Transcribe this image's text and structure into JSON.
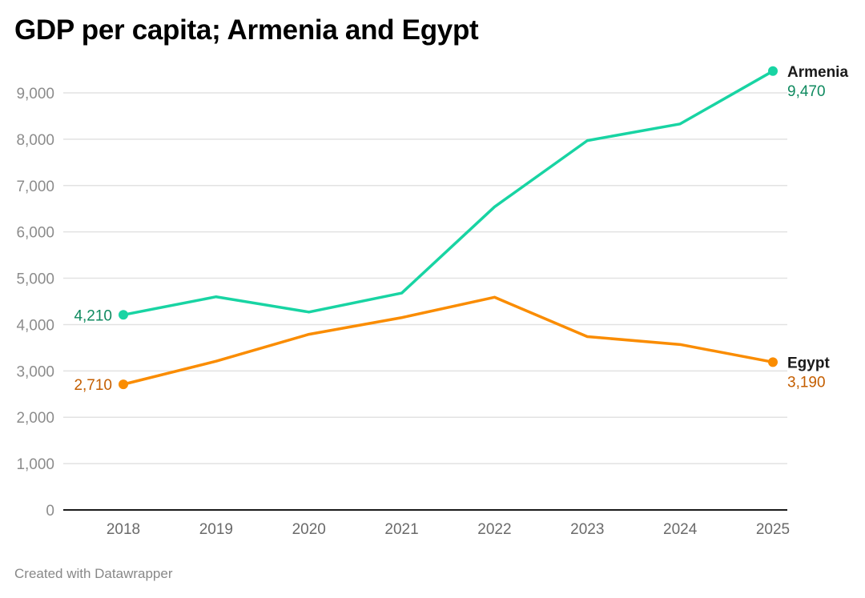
{
  "chart_data": {
    "type": "line",
    "title": "GDP per capita; Armenia and Egypt",
    "xlabel": "",
    "ylabel": "",
    "x": [
      2018,
      2019,
      2020,
      2021,
      2022,
      2023,
      2024,
      2025
    ],
    "x_tick_labels": [
      "2018",
      "2019",
      "2020",
      "2021",
      "2022",
      "2023",
      "2024",
      "2025"
    ],
    "ylim": [
      0,
      9000
    ],
    "y_ticks": [
      0,
      1000,
      2000,
      3000,
      4000,
      5000,
      6000,
      7000,
      8000,
      9000
    ],
    "y_tick_labels": [
      "0",
      "1,000",
      "2,000",
      "3,000",
      "4,000",
      "5,000",
      "6,000",
      "7,000",
      "8,000",
      "9,000"
    ],
    "grid": true,
    "legend": "direct-labels-right",
    "series": [
      {
        "name": "Armenia",
        "color": "#18d4a3",
        "label_color": "#0f8a5f",
        "values": [
          4210,
          4600,
          4270,
          4680,
          6540,
          7970,
          8330,
          9470
        ],
        "start_label": "4,210",
        "end_label": "9,470"
      },
      {
        "name": "Egypt",
        "color": "#fa8c00",
        "label_color": "#c45e00",
        "values": [
          2710,
          3210,
          3790,
          4150,
          4590,
          3740,
          3570,
          3190
        ],
        "start_label": "2,710",
        "end_label": "3,190"
      }
    ]
  },
  "footer": "Created with Datawrapper"
}
